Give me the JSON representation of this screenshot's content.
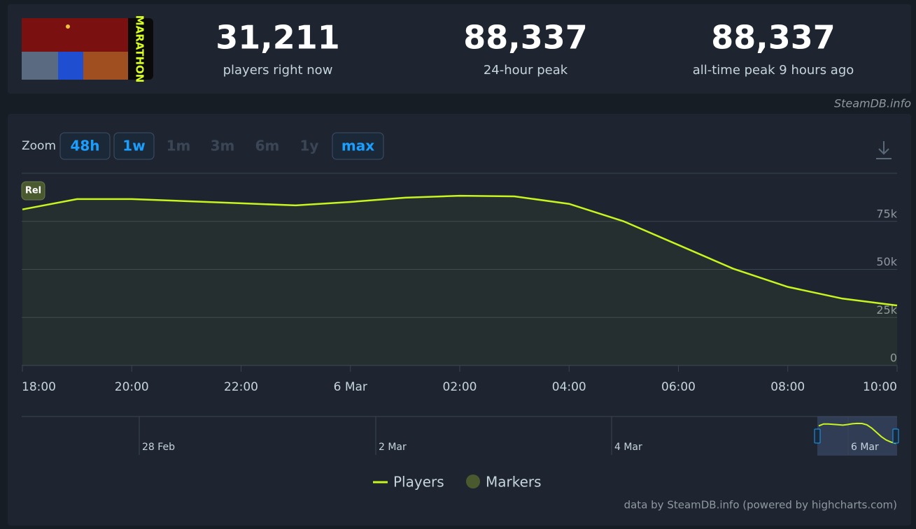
{
  "logo_text": "MARATHON",
  "stats": [
    {
      "value": "31,211",
      "label": "players right now"
    },
    {
      "value": "88,337",
      "label": "24-hour peak"
    },
    {
      "value": "88,337",
      "label": "all-time peak 9 hours ago"
    }
  ],
  "credit": "SteamDB.info",
  "zoom": {
    "label": "Zoom",
    "buttons": [
      "48h",
      "1w",
      "1m",
      "3m",
      "6m",
      "1y",
      "max"
    ],
    "enabled": [
      true,
      true,
      false,
      false,
      false,
      false,
      true
    ]
  },
  "chart_data": {
    "type": "line",
    "categories": [
      "18:00",
      null,
      "20:00",
      null,
      "22:00",
      null,
      "6 Mar",
      null,
      "02:00",
      null,
      "04:00",
      null,
      "06:00",
      null,
      "08:00",
      null,
      "10:00"
    ],
    "series": [
      {
        "name": "Players",
        "color": "#c8f51e",
        "values": [
          81200,
          86600,
          86600,
          85500,
          84400,
          83300,
          85100,
          87300,
          88337,
          88000,
          84100,
          75000,
          62700,
          50400,
          40900,
          34800,
          31211
        ]
      }
    ],
    "markers": {
      "name": "Markers",
      "color": "#4a5a2e",
      "labels": [
        "Rel"
      ]
    },
    "ylim": [
      0,
      100000
    ],
    "yticks": [
      0,
      {
        "value": 25000,
        "label": "25k"
      },
      {
        "value": 50000,
        "label": "50k"
      },
      {
        "value": 75000,
        "label": "75k"
      }
    ],
    "grid": true,
    "navigator": {
      "labels": [
        "28 Feb",
        "2 Mar",
        "4 Mar",
        "6 Mar"
      ]
    },
    "footer": "data by SteamDB.info (powered by highcharts.com)"
  }
}
